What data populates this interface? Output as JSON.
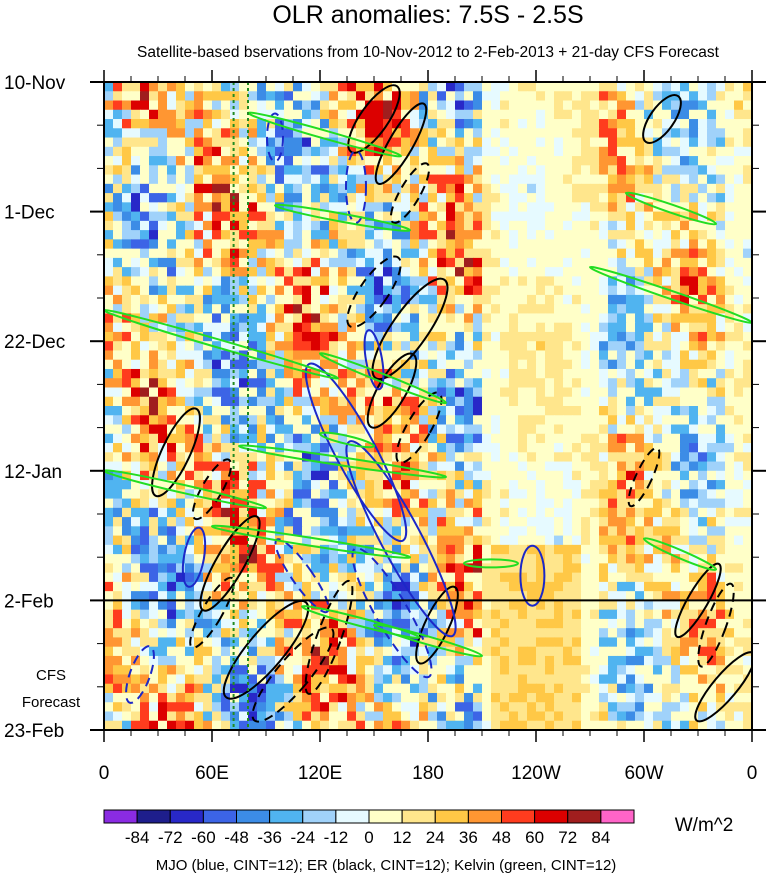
{
  "chart_data": {
    "type": "heatmap",
    "title": "OLR anomalies: 7.5S - 2.5S",
    "subtitle": "Satellite-based bservations from 10-Nov-2012 to 2-Feb-2013 + 21-day CFS Forecast",
    "x_ticks": [
      "0",
      "60E",
      "120E",
      "180",
      "120W",
      "60W",
      "0"
    ],
    "x_tick_values": [
      0,
      60,
      120,
      180,
      240,
      300,
      360
    ],
    "xlim": [
      0,
      360
    ],
    "y_ticks": [
      "10-Nov",
      "1-Dec",
      "22-Dec",
      "12-Jan",
      "2-Feb",
      "23-Feb"
    ],
    "y_tick_values": [
      0,
      21,
      42,
      63,
      84,
      105
    ],
    "ylim": [
      0,
      105
    ],
    "ylim_note_units": "days",
    "forecast_start": {
      "value": 84,
      "label_lines": [
        "CFS",
        "Forecast"
      ]
    },
    "colorbar": {
      "levels": [
        "-84",
        "-72",
        "-60",
        "-48",
        "-36",
        "-24",
        "-12",
        "0",
        "12",
        "24",
        "36",
        "48",
        "60",
        "72",
        "84"
      ],
      "colors": [
        "#8a2be2",
        "#1e1e8c",
        "#2828c8",
        "#3c64e6",
        "#3c8ce6",
        "#50b4f0",
        "#a0d2fa",
        "#e6faff",
        "#ffffc8",
        "#ffe68c",
        "#ffc846",
        "#ff9632",
        "#ff3c1e",
        "#dc0000",
        "#a01e1e",
        "#ff64c8"
      ],
      "units": "W/m^2"
    },
    "reference_lines": [
      {
        "type": "vertical",
        "x": 72,
        "color": "#228b22",
        "style": "dotted"
      },
      {
        "type": "vertical",
        "x": 80,
        "color": "#228b22",
        "style": "dotted"
      },
      {
        "type": "horizontal",
        "y": 84,
        "color": "#000000",
        "style": "solid"
      }
    ],
    "contours_legend": "MJO (blue, CINT=12); ER (black, CINT=12); Kelvin (green, CINT=12)",
    "contour_colors": {
      "mjo": "#1c28c8",
      "er": "#000000",
      "kelvin": "#22dd22"
    }
  }
}
